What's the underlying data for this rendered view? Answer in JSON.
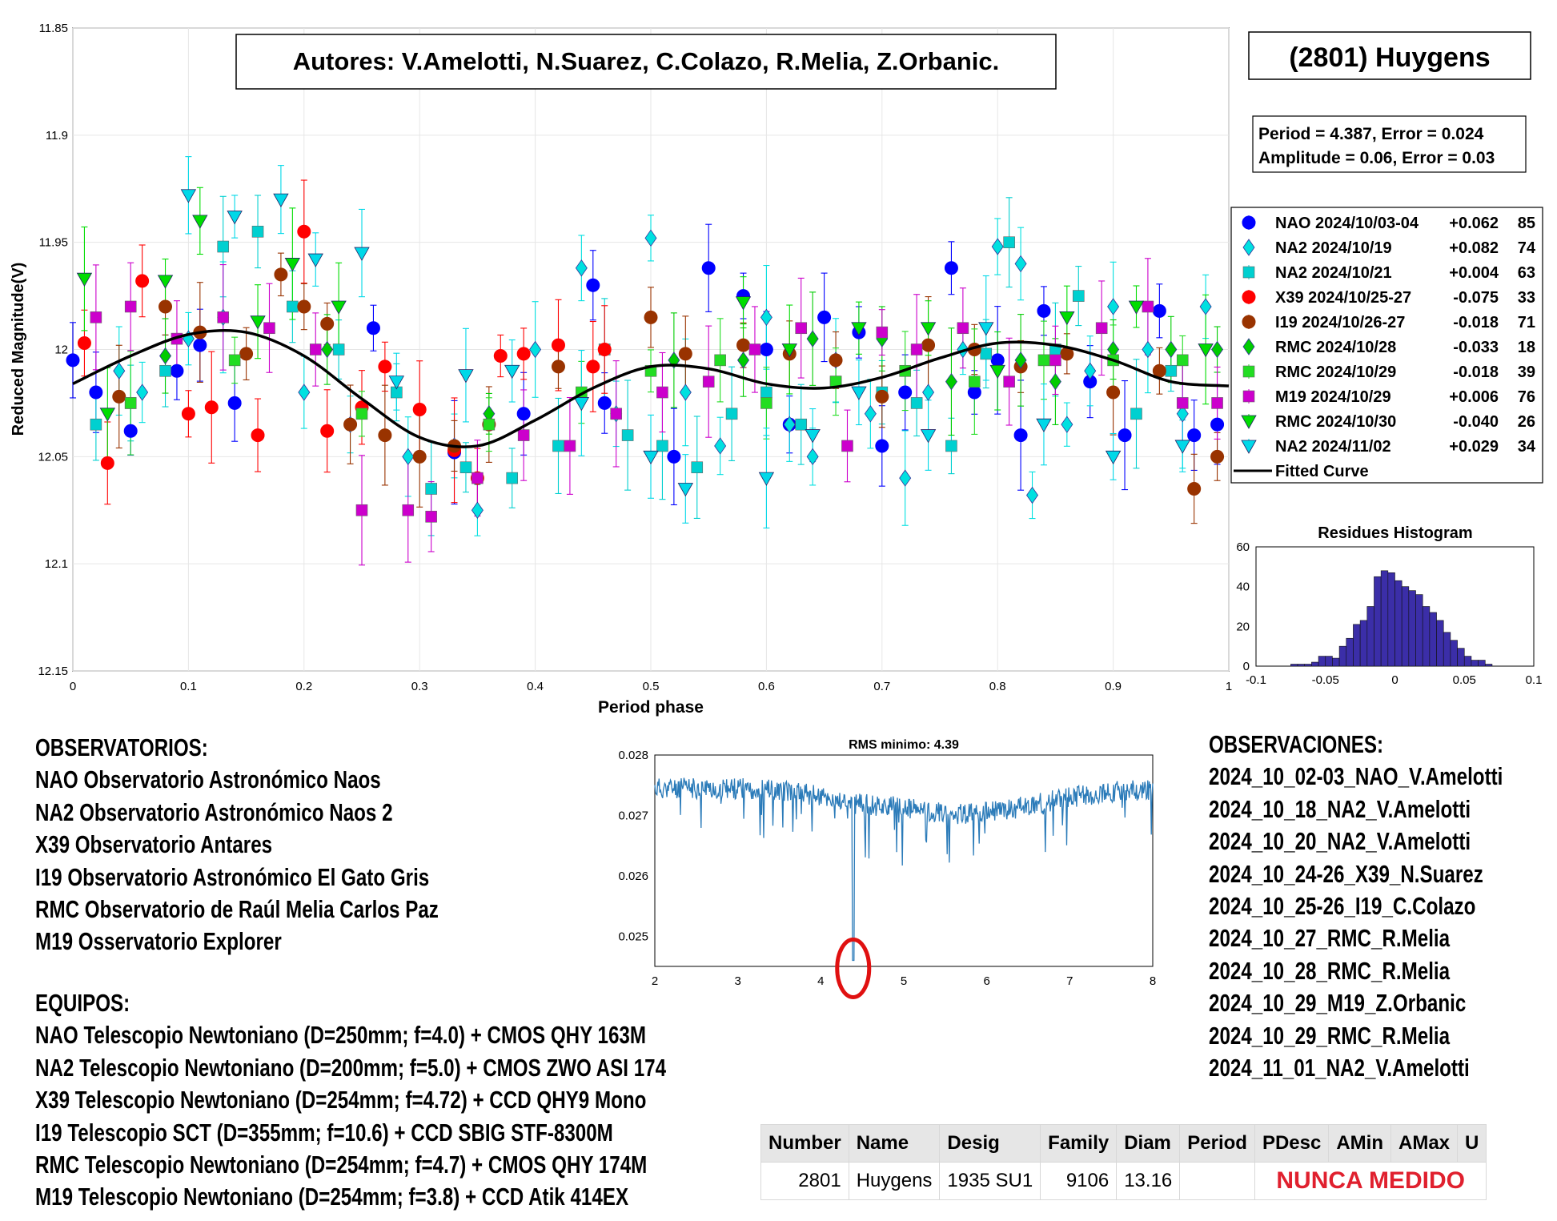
{
  "authors": "Autores: V.Amelotti, N.Suarez, C.Colazo, R.Melia, Z.Orbanic.",
  "object_title": "(2801) Huygens",
  "fit_info": {
    "period_line": "Period =  4.387, Error = 0.024",
    "amplitude_line": "Amplitude = 0.06, Error = 0.03"
  },
  "chart_data": [
    {
      "type": "scatter",
      "title": "",
      "xlabel": "Period phase",
      "ylabel": "Reduced Magnitude(V)",
      "xlim": [
        0,
        1
      ],
      "ylim": [
        11.85,
        12.15
      ],
      "y_reversed": true,
      "grid": true,
      "legend_position": "right",
      "x_ticks": [
        "0",
        "0.1",
        "0.2",
        "0.3",
        "0.4",
        "0.5",
        "0.6",
        "0.7",
        "0.8",
        "0.9",
        "1"
      ],
      "y_ticks": [
        "11.85",
        "11.9",
        "11.95",
        "12",
        "12.05",
        "12.1",
        "12.15"
      ],
      "series": [
        {
          "name": "NAO 2024/10/03-04",
          "offset": "+0.062",
          "count": "85",
          "color": "#0000ff",
          "marker": "circle",
          "x": [
            0.0,
            0.02,
            0.05,
            0.09,
            0.11,
            0.14,
            0.26,
            0.33,
            0.39,
            0.45,
            0.46,
            0.52,
            0.55,
            0.58,
            0.6,
            0.62,
            0.65,
            0.68,
            0.7,
            0.72,
            0.76,
            0.78,
            0.8,
            0.82,
            0.84,
            0.88,
            0.91,
            0.94,
            0.97,
            0.99
          ],
          "y": [
            12.005,
            12.02,
            12.038,
            12.01,
            11.998,
            12.025,
            11.99,
            12.048,
            12.03,
            11.97,
            12.025,
            12.05,
            11.962,
            11.975,
            12.0,
            12.035,
            11.985,
            11.992,
            12.045,
            12.02,
            11.962,
            12.02,
            12.005,
            12.04,
            11.982,
            12.015,
            12.04,
            11.982,
            12.04,
            12.035
          ]
        },
        {
          "name": "NA2 2024/10/19",
          "offset": "+0.082",
          "count": "74",
          "color": "#00e0e0",
          "marker": "diamond",
          "x": [
            0.04,
            0.06,
            0.1,
            0.13,
            0.2,
            0.24,
            0.29,
            0.33,
            0.35,
            0.4,
            0.44,
            0.47,
            0.5,
            0.53,
            0.56,
            0.6,
            0.62,
            0.64,
            0.66,
            0.69,
            0.72,
            0.74,
            0.77,
            0.8,
            0.82,
            0.83,
            0.86,
            0.88,
            0.9,
            0.93,
            0.96,
            0.98
          ],
          "y": [
            12.01,
            12.02,
            11.995,
            11.985,
            12.02,
            12.035,
            12.05,
            12.045,
            12.075,
            12.0,
            11.962,
            12.03,
            11.948,
            12.02,
            12.045,
            11.985,
            12.035,
            12.05,
            12.005,
            12.03,
            12.06,
            12.02,
            12.0,
            11.952,
            11.96,
            12.068,
            12.035,
            12.01,
            11.98,
            12.0,
            12.03,
            11.98
          ]
        },
        {
          "name": "NA2 2024/10/21",
          "offset": "+0.004",
          "count": "63",
          "color": "#00d0d0",
          "marker": "square",
          "x": [
            0.02,
            0.05,
            0.08,
            0.13,
            0.16,
            0.19,
            0.23,
            0.28,
            0.31,
            0.34,
            0.38,
            0.42,
            0.46,
            0.48,
            0.51,
            0.54,
            0.57,
            0.6,
            0.63,
            0.66,
            0.7,
            0.73,
            0.76,
            0.79,
            0.81,
            0.85,
            0.87,
            0.92,
            0.95
          ],
          "y": [
            12.035,
            12.025,
            12.01,
            11.952,
            11.945,
            11.98,
            12.0,
            12.02,
            12.065,
            12.055,
            12.06,
            12.045,
            12.0,
            12.04,
            12.045,
            12.055,
            12.03,
            12.02,
            12.035,
            12.015,
            12.02,
            12.025,
            12.045,
            12.002,
            11.95,
            12.0,
            11.975,
            12.03,
            12.01
          ]
        },
        {
          "name": "X39 2024/10/25-27",
          "offset": "-0.075",
          "count": "33",
          "color": "#ff0000",
          "marker": "circle",
          "x": [
            0.01,
            0.03,
            0.06,
            0.1,
            0.12,
            0.16,
            0.2,
            0.22,
            0.25,
            0.27,
            0.3,
            0.33,
            0.35,
            0.37,
            0.39,
            0.42,
            0.45,
            0.46
          ],
          "y": [
            11.997,
            12.053,
            11.968,
            12.03,
            12.027,
            12.04,
            11.945,
            12.038,
            12.027,
            12.008,
            12.028,
            12.047,
            12.06,
            12.003,
            12.002,
            11.998,
            12.008,
            12.0
          ]
        },
        {
          "name": "I19 2024/10/26-27",
          "offset": "-0.018",
          "count": "71",
          "color": "#993300",
          "marker": "circle",
          "x": [
            0.04,
            0.08,
            0.11,
            0.15,
            0.18,
            0.2,
            0.22,
            0.24,
            0.27,
            0.3,
            0.33,
            0.36,
            0.42,
            0.5,
            0.53,
            0.58,
            0.62,
            0.66,
            0.7,
            0.74,
            0.78,
            0.82,
            0.86,
            0.9,
            0.94,
            0.97,
            0.99
          ],
          "y": [
            12.022,
            11.98,
            11.992,
            12.002,
            11.965,
            11.98,
            11.988,
            12.035,
            12.04,
            12.05,
            12.045,
            12.035,
            12.008,
            11.985,
            12.002,
            11.998,
            12.002,
            12.005,
            12.022,
            11.998,
            12.0,
            12.008,
            12.002,
            12.02,
            12.01,
            12.065,
            12.05
          ]
        },
        {
          "name": "RMC 2024/10/28",
          "offset": "-0.033",
          "count": "18",
          "color": "#00cc00",
          "marker": "diamond",
          "x": [
            0.08,
            0.22,
            0.36,
            0.52,
            0.58,
            0.64,
            0.7,
            0.76,
            0.82,
            0.85,
            0.9,
            0.95,
            0.99
          ],
          "y": [
            12.003,
            12.0,
            12.03,
            12.005,
            12.005,
            11.995,
            11.995,
            12.015,
            12.005,
            12.015,
            12.0,
            12.0,
            12.0
          ]
        },
        {
          "name": "RMC 2024/10/29",
          "offset": "-0.018",
          "count": "39",
          "color": "#22dd22",
          "marker": "square",
          "x": [
            0.05,
            0.14,
            0.25,
            0.36,
            0.44,
            0.5,
            0.56,
            0.6,
            0.66,
            0.72,
            0.78,
            0.84,
            0.9,
            0.96
          ],
          "y": [
            12.025,
            12.005,
            12.03,
            12.035,
            12.02,
            12.01,
            12.005,
            12.025,
            12.015,
            12.01,
            12.015,
            12.005,
            12.005,
            12.005
          ]
        },
        {
          "name": "M19 2024/10/29",
          "offset": "+0.006",
          "count": "76",
          "color": "#cc00cc",
          "marker": "square",
          "x": [
            0.02,
            0.05,
            0.09,
            0.13,
            0.17,
            0.21,
            0.25,
            0.29,
            0.31,
            0.35,
            0.39,
            0.43,
            0.47,
            0.51,
            0.55,
            0.59,
            0.63,
            0.67,
            0.7,
            0.73,
            0.77,
            0.81,
            0.85,
            0.89,
            0.93,
            0.96,
            0.99
          ],
          "y": [
            11.985,
            11.98,
            11.995,
            11.985,
            11.99,
            12.0,
            12.075,
            12.075,
            12.078,
            12.06,
            12.04,
            12.045,
            12.03,
            12.02,
            12.015,
            12.0,
            11.99,
            12.045,
            11.992,
            12.0,
            11.99,
            12.015,
            12.005,
            11.99,
            11.98,
            12.025,
            12.025
          ]
        },
        {
          "name": "RMC 2024/10/30",
          "offset": "-0.040",
          "count": "26",
          "color": "#00dd00",
          "marker": "triangle-down",
          "x": [
            0.01,
            0.03,
            0.08,
            0.11,
            0.16,
            0.19,
            0.23,
            0.58,
            0.62,
            0.68,
            0.74,
            0.8,
            0.86,
            0.92,
            0.98
          ],
          "y": [
            11.967,
            12.03,
            11.968,
            11.94,
            11.987,
            11.96,
            11.98,
            11.978,
            12.0,
            11.99,
            11.99,
            12.01,
            11.985,
            11.98,
            12.0
          ]
        },
        {
          "name": "NA2 2024/11/02",
          "offset": "+0.029",
          "count": "34",
          "color": "#00d8e8",
          "marker": "triangle-down",
          "x": [
            0.1,
            0.14,
            0.18,
            0.21,
            0.25,
            0.28,
            0.34,
            0.38,
            0.44,
            0.5,
            0.53,
            0.6,
            0.64,
            0.68,
            0.74,
            0.79,
            0.84,
            0.9,
            0.96
          ],
          "y": [
            11.928,
            11.938,
            11.93,
            11.958,
            11.955,
            12.015,
            12.012,
            12.01,
            12.025,
            12.05,
            12.065,
            12.06,
            12.04,
            12.02,
            12.04,
            11.99,
            12.035,
            12.05,
            12.045
          ]
        }
      ],
      "fitted_curve": {
        "name": "Fitted Curve",
        "color": "#000000",
        "x": [
          0,
          0.05,
          0.1,
          0.15,
          0.2,
          0.25,
          0.3,
          0.35,
          0.4,
          0.45,
          0.5,
          0.55,
          0.6,
          0.65,
          0.7,
          0.75,
          0.8,
          0.85,
          0.9,
          0.95,
          1
        ],
        "y": [
          12.016,
          12.003,
          11.993,
          11.992,
          12.003,
          12.023,
          12.041,
          12.045,
          12.033,
          12.018,
          12.008,
          12.009,
          12.016,
          12.018,
          12.013,
          12.004,
          11.997,
          11.998,
          12.005,
          12.015,
          12.017
        ]
      }
    },
    {
      "type": "bar",
      "title": "Residues Histogram",
      "xlim": [
        -0.1,
        0.1
      ],
      "ylim": [
        0,
        60
      ],
      "x_ticks": [
        "-0.1",
        "-0.05",
        "0",
        "0.05",
        "0.1"
      ],
      "y_ticks": [
        "0",
        "20",
        "40",
        "60"
      ],
      "color": "#3b2ea8",
      "bin_width": 0.005,
      "bin_centers": [
        -0.0725,
        -0.0675,
        -0.0625,
        -0.0575,
        -0.0525,
        -0.0475,
        -0.0425,
        -0.0375,
        -0.0325,
        -0.0275,
        -0.0225,
        -0.0175,
        -0.0125,
        -0.0075,
        -0.0025,
        0.0025,
        0.0075,
        0.0125,
        0.0175,
        0.0225,
        0.0275,
        0.0325,
        0.0375,
        0.0425,
        0.0475,
        0.0525,
        0.0575,
        0.0625,
        0.0675
      ],
      "values": [
        1,
        1,
        1,
        2,
        5,
        5,
        4,
        10,
        14,
        21,
        23,
        30,
        45,
        48,
        47,
        43,
        40,
        38,
        36,
        30,
        27,
        23,
        17,
        13,
        9,
        5,
        3,
        3,
        1
      ]
    },
    {
      "type": "line",
      "title": "RMS minimo: 4.39",
      "xlim": [
        2,
        8
      ],
      "ylim": [
        0.0245,
        0.028
      ],
      "x_ticks": [
        "2",
        "3",
        "4",
        "5",
        "6",
        "7",
        "8"
      ],
      "y_ticks": [
        "0.025",
        "0.026",
        "0.027",
        "0.028"
      ],
      "color": "#2b7bb9",
      "minimum_x": 4.39,
      "minimum_y": 0.0246
    }
  ],
  "observatorios": {
    "heading": "OBSERVATORIOS:",
    "items": [
      "NAO Observatorio Astronómico Naos",
      "NA2 Observatorio Astronómico Naos 2",
      "X39 Observatorio Antares",
      "I19 Observatorio Astronómico El Gato Gris",
      "RMC Observatorio de Raúl Melia Carlos Paz",
      "M19 Osservatorio Explorer"
    ]
  },
  "equipos": {
    "heading": "EQUIPOS:",
    "items": [
      "NAO Telescopio Newtoniano (D=250mm; f=4.0) + CMOS QHY 163M",
      "NA2 Telescopio Newtoniano (D=200mm; f=5.0) + CMOS ZWO ASI 174",
      "X39 Telescopio Newtoniano (D=254mm; f=4.72) + CCD QHY9 Mono",
      "I19 Telescopio SCT (D=355mm; f=10.6) + CCD SBIG STF-8300M",
      "RMC Telescopio Newtoniano (D=254mm; f=4.7) + CMOS QHY 174M",
      "M19 Telescopio Newtoniano (D=254mm; f=3.8) + CCD Atik 414EX"
    ]
  },
  "observaciones": {
    "heading": "OBSERVACIONES:",
    "items": [
      "2024_10_02-03_NAO_V.Amelotti",
      "2024_10_18_NA2_V.Amelotti",
      "2024_10_20_NA2_V.Amelotti",
      "2024_10_24-26_X39_N.Suarez",
      "2024_10_25-26_I19_C.Colazo",
      "2024_10_27_RMC_R.Melia",
      "2024_10_28_RMC_R.Melia",
      "2024_10_29_M19_Z.Orbanic",
      "2024_10_29_RMC_R.Melia",
      "2024_11_01_NA2_V.Amelotti"
    ]
  },
  "mpc_table": {
    "headers": [
      "Number",
      "Name",
      "Desig",
      "Family",
      "Diam",
      "Period",
      "PDesc",
      "AMin",
      "AMax",
      "U"
    ],
    "row": {
      "number": "2801",
      "name": "Huygens",
      "desig": "1935 SU1",
      "family": "9106",
      "diam": "13.16",
      "never": "NUNCA MEDIDO"
    }
  }
}
